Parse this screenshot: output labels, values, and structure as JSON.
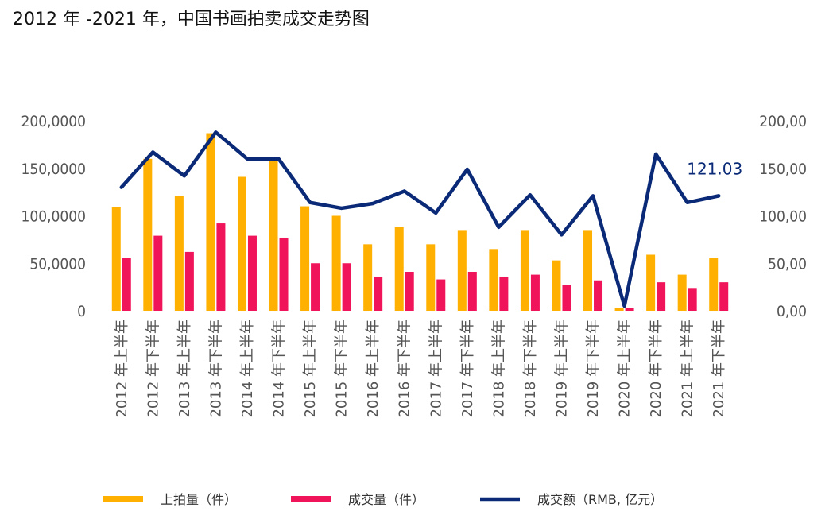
{
  "chart_data": {
    "type": "bar",
    "title": "2012 年 -2021 年，中国书画拍卖成交走势图",
    "categories": [
      "2012 年上半年",
      "2012 年下半年",
      "2013 年上半年",
      "2013 年下半年",
      "2014 年上半年",
      "2014 年下半年",
      "2015 年上半年",
      "2015 年下半年",
      "2016 年上半年",
      "2016 年下半年",
      "2017 年上半年",
      "2017 年下半年",
      "2018 年上半年",
      "2018 年下半年",
      "2019 年上半年",
      "2019 年下半年",
      "2020 年上半年",
      "2020 年下半年",
      "2021 年上半年",
      "2021 年下半年"
    ],
    "y_left_ticks": [
      "0",
      "50,0000",
      "100,0000",
      "150,0000",
      "200,0000"
    ],
    "y_left_lim": [
      0,
      200000
    ],
    "y_right_ticks": [
      "0,00",
      "50,00",
      "100,00",
      "150,00",
      "200,00"
    ],
    "y_right_lim": [
      0,
      200
    ],
    "series": [
      {
        "name": "上拍量（件）",
        "kind": "bar",
        "axis": "left",
        "color": "#FFB000",
        "values": [
          109000,
          160000,
          121000,
          187000,
          141000,
          159000,
          110000,
          100000,
          70000,
          88000,
          70000,
          85000,
          65000,
          85000,
          53000,
          85000,
          3000,
          59000,
          38000,
          56000
        ]
      },
      {
        "name": "成交量（件）",
        "kind": "bar",
        "axis": "left",
        "color": "#F0145A",
        "values": [
          56000,
          79000,
          62000,
          92000,
          79000,
          77000,
          50000,
          50000,
          36000,
          41000,
          33000,
          41000,
          36000,
          38000,
          27000,
          32000,
          3000,
          30000,
          24000,
          30000
        ]
      },
      {
        "name": "成交额（RMB, 亿元）",
        "kind": "line",
        "axis": "right",
        "color": "#0A2A78",
        "values": [
          130,
          167,
          142,
          188,
          160,
          160,
          114,
          108,
          113,
          126,
          103,
          149,
          88,
          122,
          80,
          121,
          5,
          165,
          114,
          121.03
        ]
      }
    ],
    "annotations": [
      {
        "text": "121.03",
        "series": 2,
        "index": 19
      }
    ],
    "grid": false,
    "legend_position": "bottom"
  }
}
